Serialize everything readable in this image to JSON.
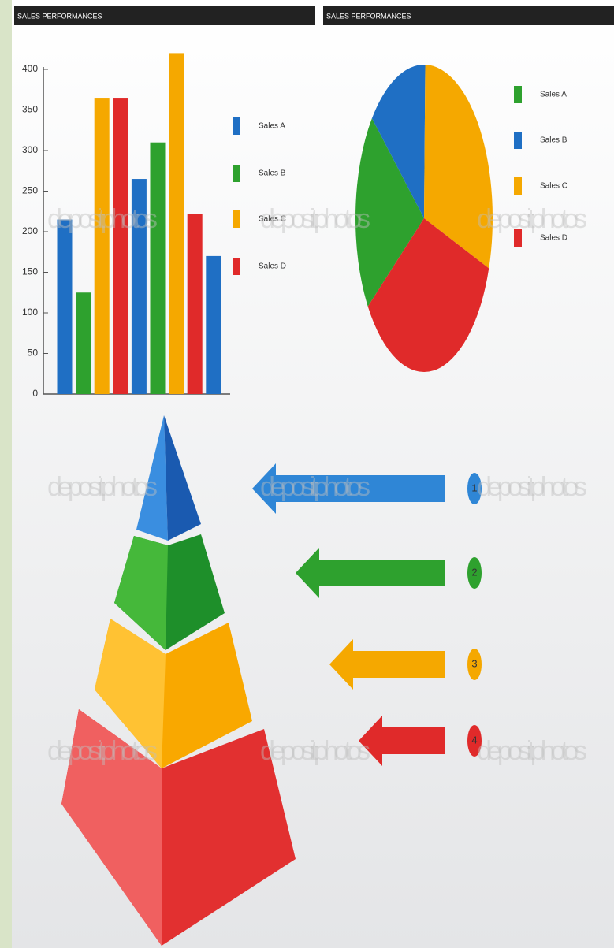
{
  "chart_data": [
    {
      "type": "bar",
      "title": "SALES PERFORMANCES",
      "categories": [
        null,
        null,
        null
      ],
      "series": [
        {
          "name": "Sales A",
          "color": "#1f6fc4",
          "values": [
            215,
            265,
            170
          ]
        },
        {
          "name": "Sales B",
          "color": "#2ea12e",
          "values": [
            125,
            310,
            null
          ]
        },
        {
          "name": "Sales C",
          "color": "#f5a800",
          "values": [
            365,
            420,
            null
          ]
        },
        {
          "name": "Sales D",
          "color": "#e02a2a",
          "values": [
            365,
            222,
            null
          ]
        }
      ],
      "ylim": [
        0,
        400
      ],
      "yticks": [
        0,
        50,
        100,
        150,
        200,
        250,
        300,
        350,
        400
      ]
    },
    {
      "type": "pie",
      "title": "SALES PERFORMANCES",
      "categories": [
        "Sales A",
        "Sales B",
        "Sales C",
        "Sales D"
      ],
      "values": [
        21,
        14,
        30,
        35
      ],
      "colors": [
        "#2ea12e",
        "#1f6fc4",
        "#f5a800",
        "#e02a2a"
      ],
      "startangle": 235
    }
  ],
  "steps": [
    "1",
    "2",
    "3",
    "4"
  ],
  "watermark": "depositphotos"
}
